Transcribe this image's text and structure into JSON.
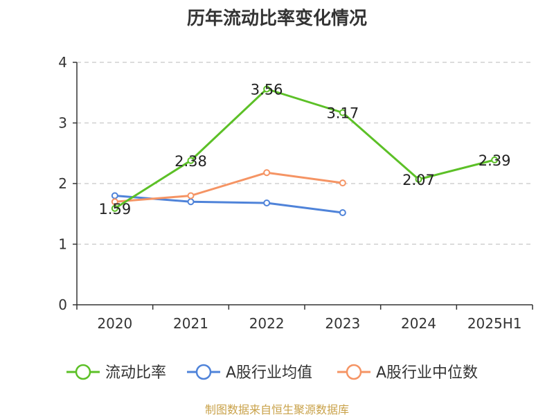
{
  "chart_data": {
    "type": "line",
    "title": "历年流动比率变化情况",
    "categories": [
      "2020",
      "2021",
      "2022",
      "2023",
      "2024",
      "2025H1"
    ],
    "ylim": [
      0,
      4
    ],
    "yticks": [
      "0",
      "1",
      "2",
      "3",
      "4"
    ],
    "grid": true,
    "legend_position": "bottom",
    "series": [
      {
        "name": "流动比率",
        "color": "#5cc027",
        "values": [
          1.59,
          2.38,
          3.56,
          3.17,
          2.07,
          2.39
        ],
        "labels": [
          "1.59",
          "2.38",
          "3.56",
          "3.17",
          "2.07",
          "2.39"
        ]
      },
      {
        "name": "A股行业均值",
        "color": "#4f83d9",
        "values": [
          1.8,
          1.7,
          1.68,
          1.52,
          null,
          null
        ]
      },
      {
        "name": "A股行业中位数",
        "color": "#f59464",
        "values": [
          1.7,
          1.8,
          2.18,
          2.01,
          null,
          null
        ]
      }
    ]
  },
  "footer": {
    "source": "制图数据来自恒生聚源数据库"
  }
}
